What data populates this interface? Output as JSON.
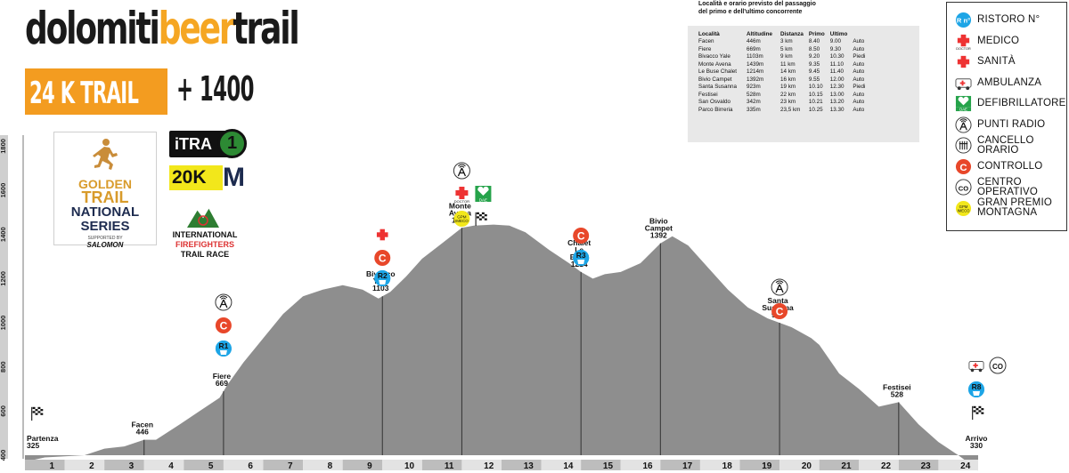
{
  "brand": {
    "title_part1": "dolomiti",
    "title_part2": "beer",
    "title_part3": "trail",
    "race": "24 K TRAIL",
    "gain": "+ 1400"
  },
  "golden": {
    "line1": "GOLDEN",
    "line2": "TRAIL",
    "line3": "NATIONAL",
    "line4": "SERIES",
    "supported": "SUPPORTED BY",
    "sponsor": "SALOMON"
  },
  "itra": {
    "label": "iTRA",
    "points": "1"
  },
  "km": {
    "label": "20K",
    "suffix": "M"
  },
  "iff": {
    "line1": "INTERNATIONAL",
    "line2": "FIREFIGHTERS",
    "line3": "TRAIL RACE"
  },
  "table": {
    "title_line1": "Località e orario previsto del passaggio",
    "title_line2": "del primo e dell'ultimo concorrente",
    "headers": [
      "Località",
      "Altitudine",
      "Distanza",
      "Primo",
      "Ultimo",
      ""
    ],
    "rows": [
      [
        "Facen",
        "446m",
        "3 km",
        "8.40",
        "9.00",
        "Auto"
      ],
      [
        "Fiere",
        "669m",
        "5 km",
        "8.50",
        "9.30",
        "Auto"
      ],
      [
        "Bivacco Yale",
        "1103m",
        "9 km",
        "9.20",
        "10.30",
        "Piedi"
      ],
      [
        "Monte Avena",
        "1439m",
        "11 km",
        "9.35",
        "11.10",
        "Auto"
      ],
      [
        "Le Buse Chalet",
        "1214m",
        "14 km",
        "9.45",
        "11.40",
        "Auto"
      ],
      [
        "Bivio Campet",
        "1392m",
        "16 km",
        "9.55",
        "12.00",
        "Auto"
      ],
      [
        "Santa Susanna",
        "923m",
        "19 km",
        "10.10",
        "12.30",
        "Piedi"
      ],
      [
        "Festisei",
        "528m",
        "22 km",
        "10.15",
        "13.00",
        "Auto"
      ],
      [
        "San Osvaldo",
        "342m",
        "23 km",
        "10.21",
        "13.20",
        "Auto"
      ],
      [
        "Parco Birreria",
        "335m",
        "23,5 km",
        "10.25",
        "13.30",
        "Auto"
      ]
    ]
  },
  "legend": [
    {
      "icon": "refreshment-icon",
      "label": "RISTORO N°"
    },
    {
      "icon": "medic-icon",
      "label": "MEDICO"
    },
    {
      "icon": "health-cross-icon",
      "label": "SANITÀ"
    },
    {
      "icon": "ambulance-icon",
      "label": "AMBULANZA"
    },
    {
      "icon": "defibrillator-icon",
      "label": "DEFIBRILLATORE"
    },
    {
      "icon": "radio-icon",
      "label": "PUNTI RADIO"
    },
    {
      "icon": "time-gate-icon",
      "label": "CANCELLO ORARIO"
    },
    {
      "icon": "control-icon",
      "label": "CONTROLLO"
    },
    {
      "icon": "operations-center-icon",
      "label": "CENTRO OPERATIVO"
    },
    {
      "icon": "mountain-prize-icon",
      "label": "GRAN PREMIO MONTAGNA"
    }
  ],
  "colors": {
    "orange": "#f39c20",
    "profile": "#8e8e8e",
    "control": "#e8472a",
    "refresh": "#1da5e6",
    "aed": "#25a34a",
    "gpm": "#f2e71b"
  },
  "chart_data": {
    "type": "area",
    "ylim": [
      400,
      1850
    ],
    "yticks": [
      400,
      600,
      800,
      1000,
      1200,
      1400,
      1600,
      1800
    ],
    "xticks": [
      "1",
      "2",
      "3",
      "4",
      "5",
      "6",
      "7",
      "8",
      "9",
      "10",
      "11",
      "12",
      "13",
      "14",
      "15",
      "16",
      "17",
      "18",
      "19",
      "20",
      "21",
      "22",
      "23",
      "24"
    ],
    "profile": [
      [
        0.0,
        370
      ],
      [
        0.5,
        390
      ],
      [
        1.5,
        400
      ],
      [
        2.0,
        430
      ],
      [
        2.5,
        440
      ],
      [
        3.0,
        470
      ],
      [
        3.3,
        470
      ],
      [
        3.9,
        540
      ],
      [
        4.4,
        600
      ],
      [
        4.9,
        660
      ],
      [
        5.1,
        720
      ],
      [
        5.5,
        820
      ],
      [
        6.0,
        930
      ],
      [
        6.5,
        1040
      ],
      [
        7.0,
        1120
      ],
      [
        7.5,
        1150
      ],
      [
        8.0,
        1170
      ],
      [
        8.5,
        1150
      ],
      [
        8.7,
        1130
      ],
      [
        8.9,
        1110
      ],
      [
        9.2,
        1140
      ],
      [
        9.6,
        1210
      ],
      [
        10.0,
        1290
      ],
      [
        10.5,
        1360
      ],
      [
        11.0,
        1430
      ],
      [
        11.3,
        1440
      ],
      [
        11.8,
        1445
      ],
      [
        12.2,
        1440
      ],
      [
        12.6,
        1410
      ],
      [
        13.2,
        1330
      ],
      [
        13.7,
        1270
      ],
      [
        14.0,
        1230
      ],
      [
        14.3,
        1200
      ],
      [
        14.6,
        1220
      ],
      [
        15.0,
        1230
      ],
      [
        15.5,
        1270
      ],
      [
        16.0,
        1360
      ],
      [
        16.3,
        1392
      ],
      [
        16.7,
        1350
      ],
      [
        17.2,
        1250
      ],
      [
        17.7,
        1150
      ],
      [
        18.2,
        1070
      ],
      [
        18.7,
        1020
      ],
      [
        19.3,
        980
      ],
      [
        19.8,
        930
      ],
      [
        20.0,
        900
      ],
      [
        20.5,
        770
      ],
      [
        21.0,
        700
      ],
      [
        21.5,
        620
      ],
      [
        22.0,
        640
      ],
      [
        22.5,
        540
      ],
      [
        23.0,
        460
      ],
      [
        23.5,
        400
      ],
      [
        23.8,
        360
      ],
      [
        24.0,
        330
      ]
    ],
    "waypoints": [
      {
        "name": "Partenza",
        "alt": "325",
        "km": 0.0
      },
      {
        "name": "Facen",
        "alt": "446",
        "km": 3.0
      },
      {
        "name": "Fiere",
        "alt": "669",
        "km": 5.0
      },
      {
        "name": "Bivacco Yale",
        "alt": "1103",
        "km": 9.0
      },
      {
        "name": "Monte Avena",
        "alt": "1439",
        "km": 11.0
      },
      {
        "name": "Chalet Le Buse",
        "alt": "1214",
        "km": 14.0
      },
      {
        "name": "Bivio Campet",
        "alt": "1392",
        "km": 16.0
      },
      {
        "name": "Santa Susanna",
        "alt": "923",
        "km": 19.0
      },
      {
        "name": "Festisei",
        "alt": "528",
        "km": 22.0
      },
      {
        "name": "Arrivo",
        "alt": "330",
        "km": 24.0
      }
    ],
    "stations": {
      "refresh": [
        {
          "km": 5,
          "label": "R1"
        },
        {
          "km": 9,
          "label": "R2"
        },
        {
          "km": 14,
          "label": "R3"
        },
        {
          "km": 24,
          "label": "R8"
        }
      ],
      "control": [
        5,
        9,
        14,
        19
      ]
    }
  }
}
